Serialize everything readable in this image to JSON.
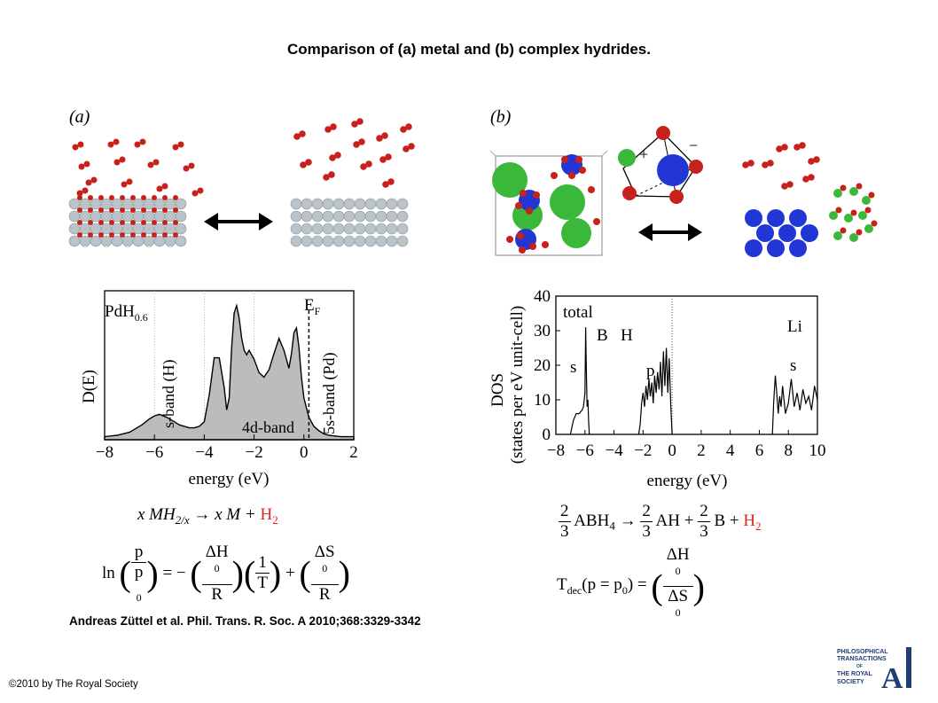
{
  "title": "Comparison of (a) metal and (b) complex hydrides.",
  "citation": "Andreas Züttel et al. Phil. Trans. R. Soc. A 2010;368:3329-3342",
  "copyright": "©2010 by The Royal Society",
  "logo": {
    "line1": "PHILOSOPHICAL",
    "line2": "TRANSACTIONS",
    "line3": "OF",
    "line4": "THE ROYAL",
    "line5": "SOCIETY",
    "letter": "A"
  },
  "panel_a": {
    "label": "(a)"
  },
  "panel_b": {
    "label": "(b)",
    "plus": "+",
    "minus": "−"
  },
  "chart_data": [
    {
      "type": "area",
      "panel": "a",
      "xlabel": "energy (eV)",
      "ylabel": "D(E)",
      "xlim": [
        -8,
        2
      ],
      "xticks": [
        "−8",
        "−6",
        "−4",
        "−2",
        "0",
        "2"
      ],
      "annotations": {
        "compound": "PdH",
        "compound_sub": "0.6",
        "fermi": "E",
        "fermi_sub": "F",
        "s_band": "s-band (H)",
        "d_band": "4d-band",
        "s5_band": "5s-band (Pd)"
      },
      "x": [
        -8,
        -7.5,
        -7,
        -6.5,
        -6.2,
        -6,
        -5.8,
        -5.5,
        -5.2,
        -5,
        -4.8,
        -4.6,
        -4.4,
        -4.2,
        -4,
        -3.8,
        -3.6,
        -3.4,
        -3.2,
        -3.1,
        -3,
        -2.9,
        -2.8,
        -2.7,
        -2.6,
        -2.5,
        -2.4,
        -2.3,
        -2.2,
        -2.0,
        -1.8,
        -1.6,
        -1.4,
        -1.2,
        -1.0,
        -0.8,
        -0.6,
        -0.5,
        -0.4,
        -0.3,
        -0.2,
        -0.1,
        0,
        0.2,
        0.4,
        0.6,
        0.8,
        1,
        1.5,
        2
      ],
      "y": [
        0.02,
        0.03,
        0.05,
        0.1,
        0.14,
        0.16,
        0.17,
        0.15,
        0.12,
        0.1,
        0.09,
        0.08,
        0.08,
        0.09,
        0.12,
        0.3,
        0.55,
        0.55,
        0.35,
        0.2,
        0.28,
        0.62,
        0.85,
        0.9,
        0.82,
        0.68,
        0.6,
        0.57,
        0.6,
        0.54,
        0.45,
        0.42,
        0.47,
        0.58,
        0.68,
        0.6,
        0.48,
        0.58,
        0.72,
        0.75,
        0.62,
        0.42,
        0.28,
        0.15,
        0.09,
        0.06,
        0.04,
        0.03,
        0.02,
        0.02
      ],
      "equation": {
        "lhs": "x MH",
        "lhs_sub": "2/x",
        "arrow": "→",
        "rhs": "x M +",
        "h2": "H",
        "h2_sub": "2"
      },
      "vanthoff": {
        "ln": "ln",
        "p": "p",
        "p0": "p",
        "p0_sub": "0",
        "eq": "= −",
        "dH": "ΔH",
        "dH_sup": "0",
        "R": "R",
        "one": "1",
        "T": "T",
        "plus": "+",
        "dS": "ΔS",
        "dS_sup": "0",
        "R2": "R"
      }
    },
    {
      "type": "line",
      "panel": "b",
      "xlabel": "energy (eV)",
      "ylabel": "DOS",
      "ylabel2": "(states per eV unit-cell)",
      "xlim": [
        -8,
        10
      ],
      "ylim": [
        0,
        40
      ],
      "xticks": [
        "−8",
        "−6",
        "−4",
        "−2",
        "0",
        "2",
        "4",
        "6",
        "8",
        "10"
      ],
      "yticks": [
        "0",
        "10",
        "20",
        "30",
        "40"
      ],
      "annotations": {
        "total": "total",
        "B": "B",
        "H": "H",
        "Li": "Li",
        "s1": "s",
        "p": "p",
        "s2": "s"
      },
      "series": [
        {
          "x": [
            -7,
            -6.8,
            -6.6,
            -6.4,
            -6.2,
            -6.1,
            -6.0,
            -5.95,
            -5.9,
            -5.85,
            -5.8,
            -5.75,
            -5.7
          ],
          "y": [
            0,
            4,
            6,
            6,
            7,
            8,
            12,
            31,
            18,
            8,
            10,
            4,
            0
          ]
        },
        {
          "x": [
            -2.3,
            -2.2,
            -2.1,
            -2.0,
            -1.9,
            -1.8,
            -1.7,
            -1.6,
            -1.5,
            -1.4,
            -1.3,
            -1.2,
            -1.1,
            -1.0,
            -0.9,
            -0.8,
            -0.7,
            -0.6,
            -0.5,
            -0.4,
            -0.3,
            -0.2,
            -0.1,
            0
          ],
          "y": [
            0,
            3,
            9,
            12,
            8,
            14,
            10,
            16,
            11,
            15,
            9,
            17,
            12,
            18,
            13,
            21,
            11,
            24,
            14,
            25,
            12,
            22,
            9,
            0
          ]
        },
        {
          "x": [
            6.9,
            7.0,
            7.1,
            7.2,
            7.3,
            7.4,
            7.5,
            7.6,
            7.8,
            8.0,
            8.2,
            8.4,
            8.6,
            8.8,
            9.0,
            9.2,
            9.4,
            9.6,
            9.8,
            10.0
          ],
          "y": [
            0,
            10,
            17,
            12,
            6,
            11,
            8,
            14,
            6,
            9,
            16,
            8,
            12,
            7,
            13,
            9,
            11,
            7,
            14,
            10
          ]
        }
      ],
      "equation": {
        "c1n": "2",
        "c1d": "3",
        "abh": "ABH",
        "abh_sub": "4",
        "arrow": "→",
        "c2n": "2",
        "c2d": "3",
        "ah": "AH +",
        "c3n": "2",
        "c3d": "3",
        "b": "B +",
        "h2": "H",
        "h2_sub": "2"
      },
      "tdec": {
        "t": "T",
        "t_sub": "dec",
        "mid": "(p = p",
        "mid_sub": "0",
        "end": ") =",
        "dH": "ΔH",
        "dH_sup": "0",
        "dS": "ΔS",
        "dS_sup": "0"
      }
    }
  ],
  "colors": {
    "accent_red": "#e0261f",
    "shade": "#bcbcbc",
    "li": "#3ab83a",
    "b": "#2236d6",
    "h": "#c8201a",
    "atom": "#b9c3c8"
  }
}
